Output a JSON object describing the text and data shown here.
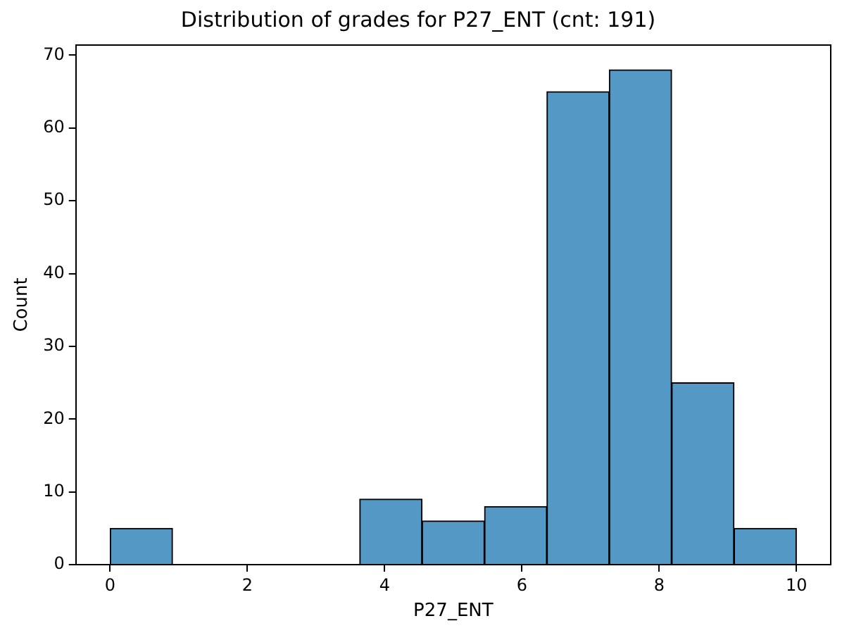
{
  "chart_data": {
    "type": "histogram",
    "title": "Distribution of grades for P27_ENT (cnt: 191)",
    "xlabel": "P27_ENT",
    "ylabel": "Count",
    "bins": [
      0,
      0.909,
      1.818,
      2.727,
      3.636,
      4.545,
      5.455,
      6.364,
      7.273,
      8.182,
      9.091,
      10
    ],
    "values": [
      5,
      0,
      0,
      0,
      9,
      6,
      8,
      65,
      68,
      25,
      5
    ],
    "color": "#5498c6",
    "xlim": [
      -0.5,
      10.5
    ],
    "xticks": [
      0,
      2,
      4,
      6,
      8,
      10
    ],
    "ylim": [
      0,
      71.4
    ],
    "yticks": [
      0,
      10,
      20,
      30,
      40,
      50,
      60,
      70
    ],
    "grid": false,
    "legend": false
  }
}
